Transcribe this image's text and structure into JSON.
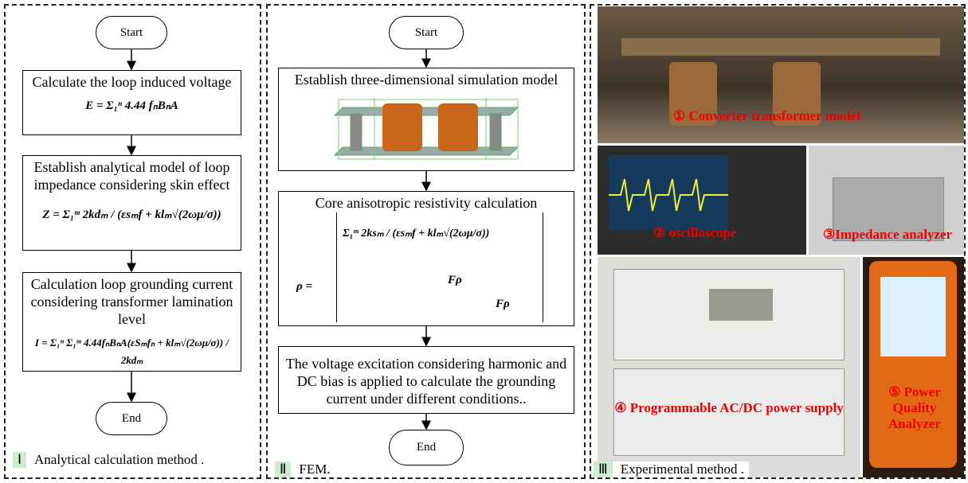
{
  "panels": [
    {
      "label": "Ⅰ",
      "caption": "Analytical calculation method .",
      "start": "Start",
      "end": "End",
      "steps": [
        {
          "text": "Calculate the loop induced voltage",
          "formula": "E = Σ₁ⁿ 4.44 fₙBₙA"
        },
        {
          "text": "Establish analytical model of loop impedance considering skin effect",
          "formula": "Z = Σ₁ᵐ 2kdₘ / (εsₘf + klₘ√(2ωμ/σ))"
        },
        {
          "text": "Calculation loop grounding current considering transformer lamination level",
          "formula": "I = Σ₁ⁿ Σ₁ᵐ 4.44fₙBₙA(εSₘfₙ + klₘ√(2ωμ/σ)) / 2kdₘ"
        }
      ]
    },
    {
      "label": "Ⅱ",
      "caption": "FEM.",
      "start": "Start",
      "end": "End",
      "steps": [
        {
          "text": "Establish three-dimensional simulation model"
        },
        {
          "text": "Core anisotropic resistivity calculation",
          "formula": [
            "ρ =",
            "Σ₁ᵐ 2ksₘ / (εsₘf + klₘ√(2ωμ/σ))",
            "Fρ",
            "Fρ"
          ]
        },
        {
          "text": "The voltage excitation considering harmonic and DC bias is applied to calculate the grounding current under different conditions.."
        }
      ]
    },
    {
      "label": "Ⅲ",
      "caption": "Experimental method .",
      "photos": [
        "① Converter transformer model",
        "② oscilloscope",
        "③Impedance analyzer",
        "④ Programmable AC/DC power supply",
        "⑤ Power Quality Analyzer"
      ]
    }
  ]
}
